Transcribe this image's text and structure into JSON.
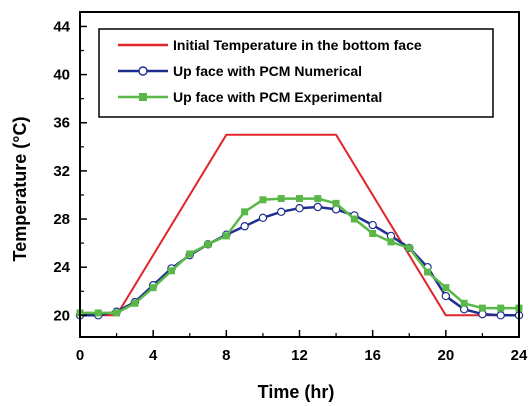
{
  "chart_data": {
    "type": "line",
    "xlabel": "Time (hr)",
    "ylabel": "Temperature (°C)",
    "xlim": [
      0,
      24
    ],
    "ylim": [
      18.2,
      45.2
    ],
    "xticks": [
      0,
      4,
      8,
      12,
      16,
      20,
      24
    ],
    "yticks": [
      20,
      24,
      28,
      32,
      36,
      40,
      44
    ],
    "grid": false,
    "legend": "top-right",
    "series": [
      {
        "name": "Initial Temperature in the bottom face",
        "color": "#e0262b",
        "marker": "none",
        "x": [
          0,
          2,
          8,
          14,
          20,
          24
        ],
        "y": [
          20,
          20,
          35,
          35,
          20,
          20
        ]
      },
      {
        "name": "Up face with PCM Numerical",
        "color": "#1f2f8f",
        "marker": "circle",
        "x": [
          0,
          1,
          2,
          3,
          4,
          5,
          6,
          7,
          8,
          9,
          10,
          11,
          12,
          13,
          14,
          15,
          16,
          17,
          18,
          19,
          20,
          21,
          22,
          23,
          24
        ],
        "y": [
          20,
          20,
          20.3,
          21.1,
          22.5,
          23.9,
          25.0,
          25.9,
          26.7,
          27.4,
          28.1,
          28.6,
          28.9,
          29.0,
          28.8,
          28.3,
          27.5,
          26.6,
          25.6,
          24.0,
          21.6,
          20.5,
          20.1,
          20,
          20
        ]
      },
      {
        "name": "Up face with PCM Experimental",
        "color": "#59b847",
        "marker": "square",
        "x": [
          0,
          1,
          2,
          3,
          4,
          5,
          6,
          7,
          8,
          9,
          10,
          11,
          12,
          13,
          14,
          15,
          16,
          17,
          18,
          19,
          20,
          21,
          22,
          23,
          24
        ],
        "y": [
          20.2,
          20.2,
          20.2,
          21.0,
          22.3,
          23.7,
          25.1,
          25.9,
          26.6,
          28.6,
          29.6,
          29.7,
          29.7,
          29.7,
          29.3,
          28.0,
          26.8,
          26.1,
          25.6,
          23.6,
          22.3,
          21.0,
          20.6,
          20.6,
          20.6
        ]
      }
    ]
  }
}
